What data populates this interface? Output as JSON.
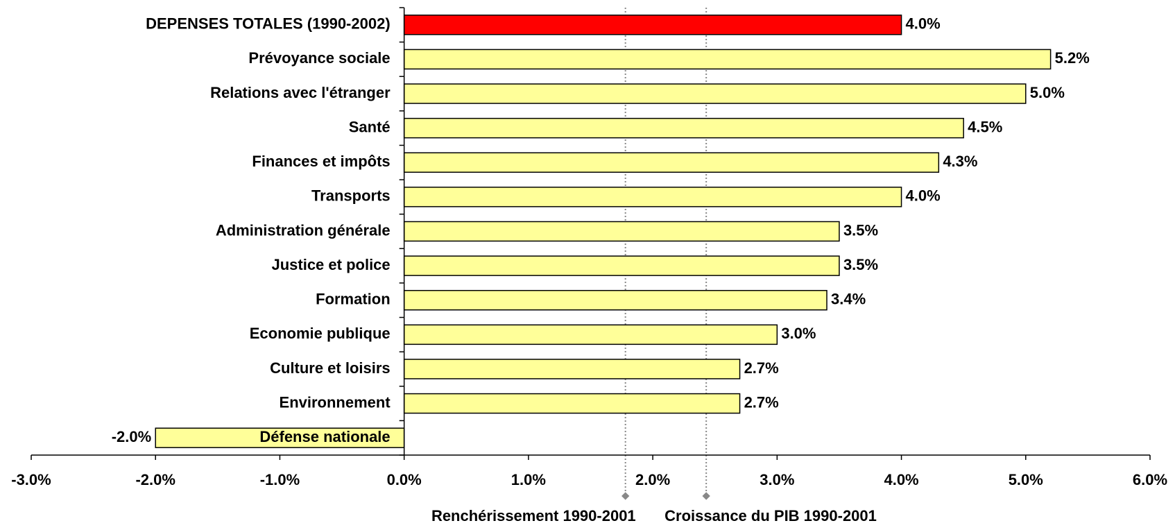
{
  "chart_data": {
    "type": "hbar",
    "categories": [
      "DEPENSES TOTALES (1990-2002)",
      "Prévoyance sociale",
      "Relations avec l'étranger",
      "Santé",
      "Finances et impôts",
      "Transports",
      "Administration générale",
      "Justice et police",
      "Formation",
      "Economie publique",
      "Culture et loisirs",
      "Environnement",
      "Défense nationale"
    ],
    "values": [
      4.0,
      5.2,
      5.0,
      4.5,
      4.3,
      4.0,
      3.5,
      3.5,
      3.4,
      3.0,
      2.7,
      2.7,
      -2.0
    ],
    "value_labels": [
      "4.0%",
      "5.2%",
      "5.0%",
      "4.5%",
      "4.3%",
      "4.0%",
      "3.5%",
      "3.5%",
      "3.4%",
      "3.0%",
      "2.7%",
      "2.7%",
      "-2.0%"
    ],
    "colors": [
      "#ff0000",
      "#ffff99",
      "#ffff99",
      "#ffff99",
      "#ffff99",
      "#ffff99",
      "#ffff99",
      "#ffff99",
      "#ffff99",
      "#ffff99",
      "#ffff99",
      "#ffff99",
      "#ffff99"
    ],
    "xlim": [
      -3,
      6
    ],
    "xticks": [
      {
        "value": -3,
        "label": "-3.0%"
      },
      {
        "value": -2,
        "label": "-2.0%"
      },
      {
        "value": -1,
        "label": "-1.0%"
      },
      {
        "value": 0,
        "label": "0.0%"
      },
      {
        "value": 1,
        "label": "1.0%"
      },
      {
        "value": 2,
        "label": "2.0%"
      },
      {
        "value": 3,
        "label": "3.0%"
      },
      {
        "value": 4,
        "label": "4.0%"
      },
      {
        "value": 5,
        "label": "5.0%"
      },
      {
        "value": 6,
        "label": "6.0%"
      }
    ],
    "reference_lines": [
      {
        "label": "Renchérissement 1990-2001",
        "value": 1.78
      },
      {
        "label": "Croissance du PIB 1990-2001",
        "value": 2.43
      }
    ],
    "grid": false
  }
}
